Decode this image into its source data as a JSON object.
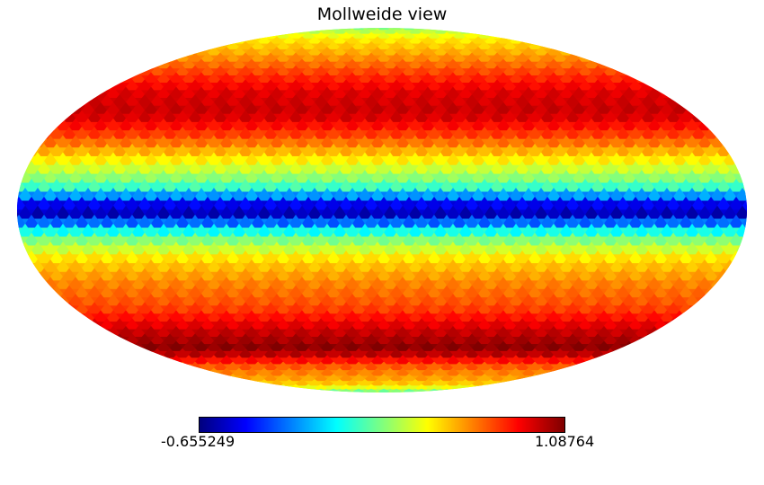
{
  "chart_data": {
    "type": "heatmap",
    "projection": "Mollweide",
    "title": "Mollweide view",
    "colormap": "jet",
    "colorbar": {
      "min": -0.655249,
      "max": 1.08764,
      "min_label": "-0.655249",
      "max_label": "1.08764"
    },
    "latitude_profile_deg": [
      90,
      80,
      70,
      60,
      50,
      40,
      30,
      20,
      10,
      0,
      -10,
      -20,
      -30,
      -40,
      -50,
      -60,
      -70,
      -80,
      -90
    ],
    "latitude_profile_values": [
      0.2,
      0.45,
      0.58,
      0.75,
      0.92,
      0.97,
      0.75,
      0.45,
      0.15,
      -0.65,
      0.15,
      0.5,
      0.65,
      0.75,
      0.95,
      1.08,
      0.7,
      0.55,
      0.2
    ],
    "background_color": "#ffffff"
  }
}
